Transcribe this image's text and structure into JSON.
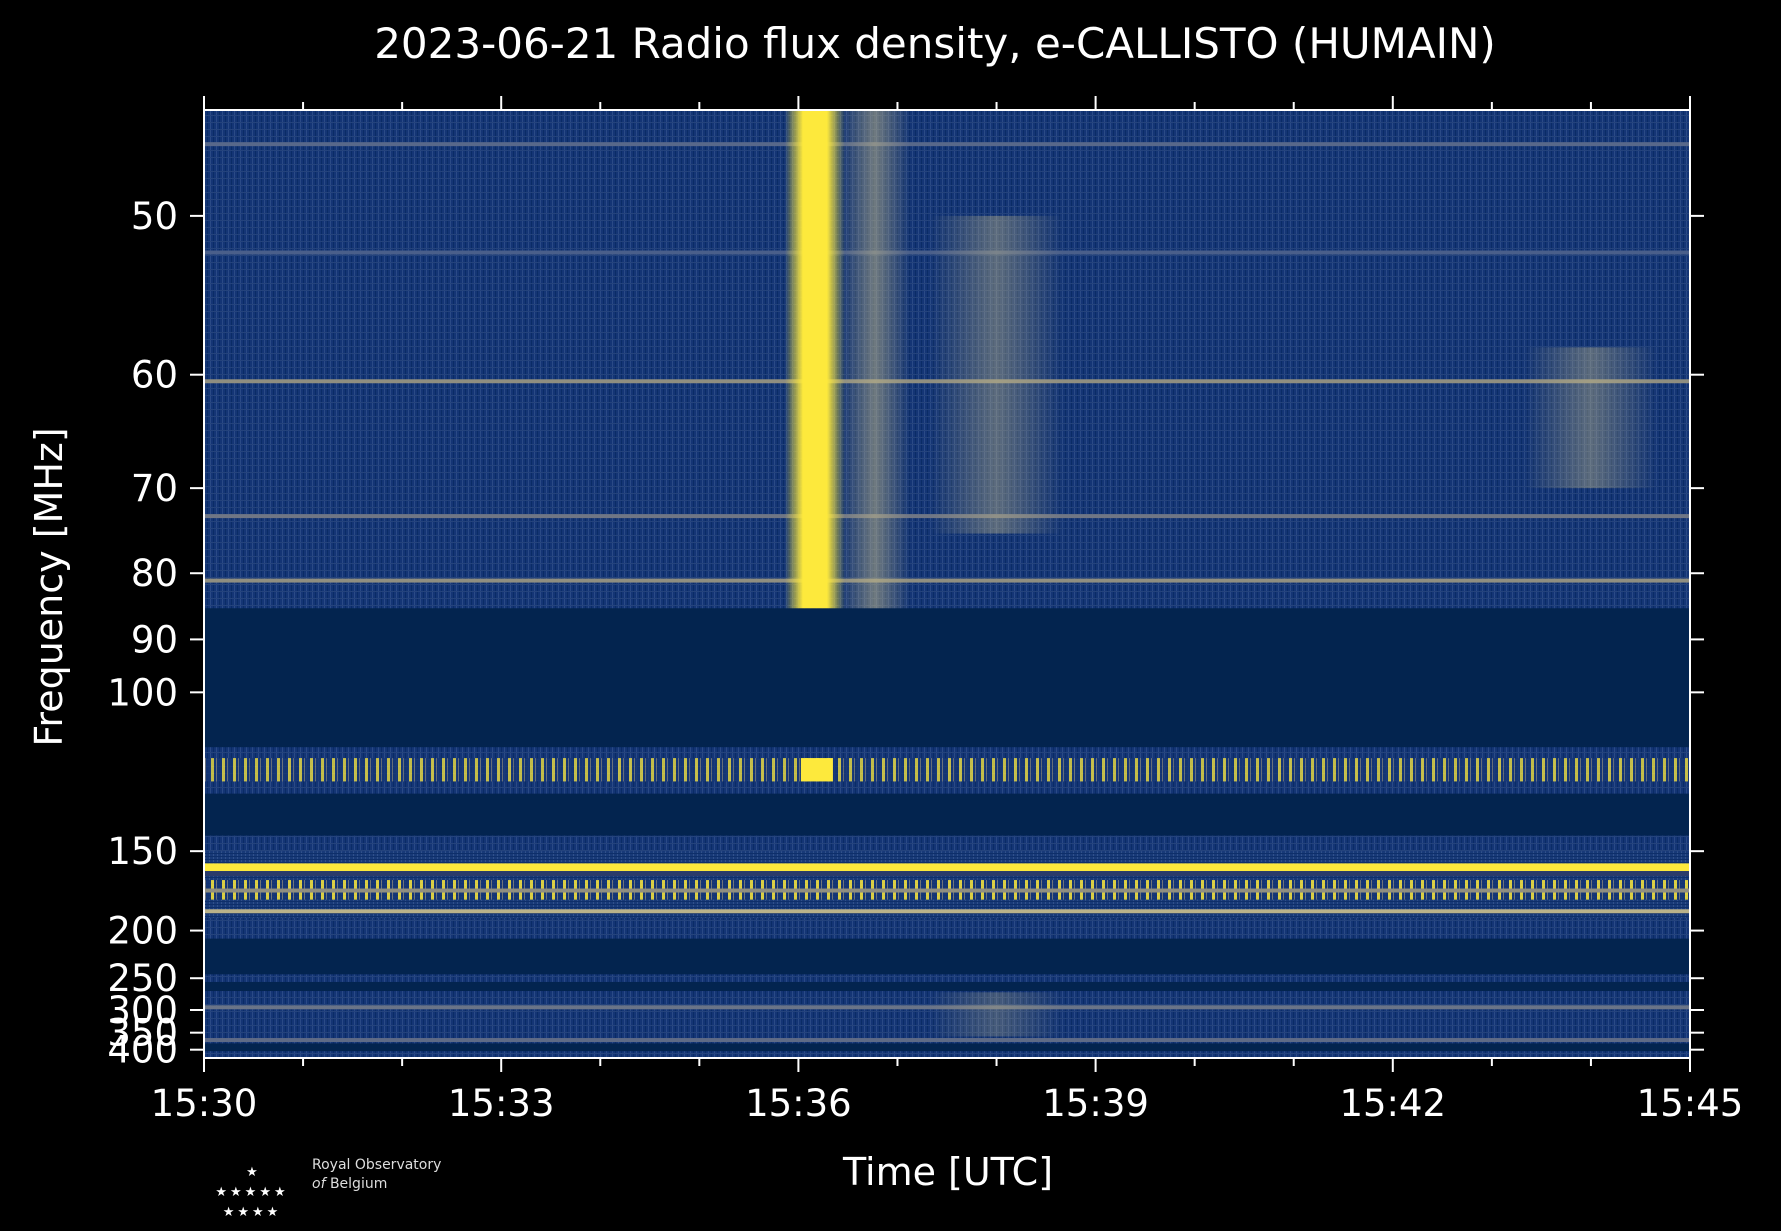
{
  "chart_data": {
    "type": "heatmap",
    "title": "2023-06-21 Radio flux density, e-CALLISTO (HUMAIN)",
    "xlabel": "Time [UTC]",
    "ylabel": "Frequency [MHz]",
    "x_ticks": [
      "15:30",
      "15:33",
      "15:36",
      "15:39",
      "15:42",
      "15:45"
    ],
    "x_range": [
      "15:30",
      "15:45"
    ],
    "y_ticks": [
      50,
      60,
      70,
      80,
      90,
      100,
      150,
      200,
      250,
      300,
      350,
      400
    ],
    "y_range": [
      45,
      430
    ],
    "y_scale": "reciprocal",
    "colormap": {
      "low": "#03244f",
      "mid": "#7e7f7a",
      "high": "#fde93c"
    },
    "features": [
      {
        "type": "no-data band",
        "f_range": [
          85,
          113
        ]
      },
      {
        "type": "no-data band",
        "f_range": [
          127,
          143
        ]
      },
      {
        "type": "no-data band",
        "f_range": [
          207,
          245
        ]
      },
      {
        "type": "no-data band",
        "f_range": [
          255,
          268
        ]
      },
      {
        "type": "no-data band",
        "f_range": [
          380,
          405
        ]
      },
      {
        "type": "type III burst",
        "t": "15:36:10",
        "f_range": [
          45,
          85
        ]
      },
      {
        "type": "burst",
        "t_range": [
          "15:37:20",
          "15:38:40"
        ],
        "f_range": [
          50,
          75
        ]
      },
      {
        "type": "drifting feature",
        "t_range": [
          "15:43:20",
          "15:44:40"
        ],
        "f_range": [
          58,
          70
        ]
      },
      {
        "type": "continuum",
        "t_range": [
          "15:37:20",
          "15:38:40"
        ],
        "f_range": [
          270,
          360
        ]
      }
    ]
  },
  "logo": {
    "line1": "Royal Observatory",
    "line2_italic": "of",
    "line2": "Belgium"
  }
}
